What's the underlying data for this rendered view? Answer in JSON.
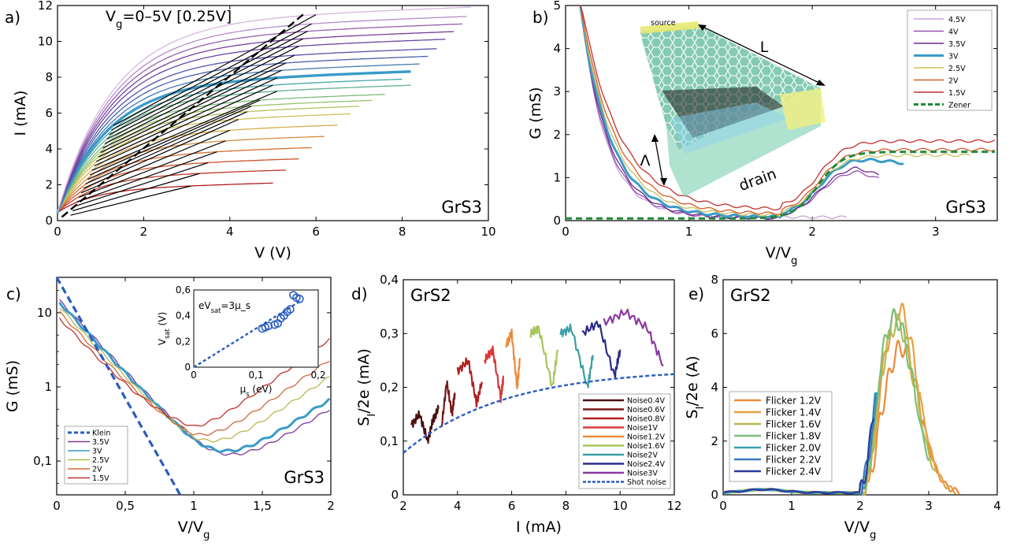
{
  "panels": {
    "a": {
      "label": "a)",
      "annotation": "V_g=0–5V [0.25V]",
      "tag": "GrS3",
      "xlabel": "V (V)",
      "ylabel": "I (mA)",
      "xticks": [
        "0",
        "2",
        "4",
        "6",
        "8",
        "10"
      ],
      "yticks": [
        "0",
        "2",
        "4",
        "6",
        "8",
        "10",
        "12"
      ]
    },
    "b": {
      "label": "b)",
      "tag": "GrS3",
      "xlabel": "V/V_g",
      "ylabel": "G (mS)",
      "xticks": [
        "0",
        "1",
        "2",
        "3"
      ],
      "yticks": [
        "0",
        "1",
        "2",
        "3",
        "4",
        "5"
      ],
      "inset": {
        "source": "source",
        "L": "L",
        "lambda": "Λ",
        "drain": "drain"
      },
      "legend": [
        "4.5V",
        "4V",
        "3.5V",
        "3V",
        "2.5V",
        "2V",
        "1.5V",
        "Zener"
      ]
    },
    "c": {
      "label": "c)",
      "tag": "GrS3",
      "xlabel": "V/V_g",
      "ylabel": "G (mS)",
      "xticks": [
        "0",
        "0,5",
        "1",
        "1,5",
        "2"
      ],
      "yticks": [
        "0,1",
        "1",
        "10"
      ],
      "legend": [
        "Klein",
        "3.5V",
        "3V",
        "2.5V",
        "2V",
        "1.5V"
      ],
      "inset": {
        "annotation": "eV_sat=3μ_s",
        "xlabel": "μ_s (eV)",
        "ylabel": "V_sat (V)",
        "xticks": [
          "0",
          "0,1",
          "0,2"
        ],
        "yticks": [
          "0",
          "0,2",
          "0,4",
          "0,6"
        ]
      }
    },
    "d": {
      "label": "d)",
      "tag": "GrS2",
      "xlabel": "I (mA)",
      "ylabel": "S_I/2e (mA)",
      "xticks": [
        "2",
        "4",
        "6",
        "8",
        "10",
        "12"
      ],
      "yticks": [
        "0",
        "0,1",
        "0,2",
        "0,3",
        "0,4"
      ],
      "legend": [
        "Noise0.4V",
        "Noise0.6V",
        "Noise0.8V",
        "Noise1V",
        "Noise1.2V",
        "Noise1.6V",
        "Noise2V",
        "Noise2.4V",
        "Noise3V",
        "Shot noise"
      ]
    },
    "e": {
      "label": "e)",
      "tag": "GrS2",
      "xlabel": "V/V_g",
      "ylabel": "S_I/2e (A)",
      "xticks": [
        "0",
        "1",
        "2",
        "3",
        "4"
      ],
      "yticks": [
        "0",
        "2",
        "4",
        "6",
        "8"
      ],
      "legend": [
        "Flicker 1.2V",
        "Flicker 1.4V",
        "Flicker 1.6V",
        "Flicker 1.8V",
        "Flicker 2.0V",
        "Flicker 2.2V",
        "Flicker 2.4V"
      ]
    }
  },
  "chart_data": [
    {
      "id": "a",
      "type": "line",
      "title": "",
      "xlabel": "V (V)",
      "ylabel": "I (mA)",
      "xlim": [
        0,
        10
      ],
      "ylim": [
        0,
        12
      ],
      "series_rule": "21 curves, V_g = 0 to 5 V in 0.25 V steps; thick teal curve = 3V",
      "saturation_currents": [
        1.3,
        2.0,
        2.6,
        3.2,
        3.8,
        4.4,
        5.0,
        5.4,
        5.7,
        6.0,
        6.45,
        6.8,
        7.2,
        7.6,
        8.0,
        8.4,
        8.9,
        9.3,
        9.7,
        10.1,
        10.6
      ],
      "curve_end_x": [
        5.0,
        5.3,
        5.6,
        5.9,
        6.2,
        6.5,
        6.8,
        7.0,
        7.3,
        7.6,
        8.2,
        8.0,
        8.2,
        8.4,
        8.6,
        8.8,
        9.0,
        9.2,
        9.4,
        9.5,
        9.6
      ],
      "dashed_line": {
        "x": [
          0.1,
          5.7
        ],
        "y": [
          0.2,
          11.5
        ]
      }
    },
    {
      "id": "b",
      "type": "line",
      "title": "",
      "xlabel": "V/V_g",
      "ylabel": "G (mS)",
      "xlim": [
        0,
        3.5
      ],
      "ylim": [
        0,
        5
      ],
      "series": [
        {
          "name": "4.5V",
          "color": "#c7a3d8"
        },
        {
          "name": "4V",
          "color": "#9a50b0"
        },
        {
          "name": "3.5V",
          "color": "#6a2a8a"
        },
        {
          "name": "3V",
          "color": "#3a9bc7"
        },
        {
          "name": "2.5V",
          "color": "#c6c25a"
        },
        {
          "name": "2V",
          "color": "#d45a2a"
        },
        {
          "name": "1.5V",
          "color": "#c23030"
        },
        {
          "name": "Zener",
          "color": "#1f8a3a",
          "dash": true
        }
      ]
    },
    {
      "id": "c",
      "type": "line",
      "title": "",
      "xlabel": "V/V_g",
      "ylabel": "G (mS)",
      "xlim": [
        0,
        2
      ],
      "ylim": [
        0.035,
        30
      ],
      "yscale": "log",
      "series": [
        {
          "name": "Klein",
          "color": "#2a5cc0",
          "dash": true
        },
        {
          "name": "3.5V",
          "color": "#7a3a9a"
        },
        {
          "name": "3V",
          "color": "#3a9bc7"
        },
        {
          "name": "2.5V",
          "color": "#b8b850"
        },
        {
          "name": "2V",
          "color": "#d06a3a"
        },
        {
          "name": "1.5V",
          "color": "#c23030"
        }
      ],
      "inset": {
        "xlabel": "μ_s (eV)",
        "ylabel": "V_sat (V)",
        "xlim": [
          0,
          0.2
        ],
        "ylim": [
          0,
          0.6
        ],
        "points": [
          [
            0.11,
            0.3
          ],
          [
            0.115,
            0.31
          ],
          [
            0.12,
            0.32
          ],
          [
            0.13,
            0.33
          ],
          [
            0.135,
            0.34
          ],
          [
            0.14,
            0.38
          ],
          [
            0.145,
            0.4
          ],
          [
            0.15,
            0.43
          ],
          [
            0.155,
            0.45
          ],
          [
            0.16,
            0.56
          ],
          [
            0.165,
            0.54
          ],
          [
            0.17,
            0.53
          ]
        ],
        "fit": {
          "x": [
            0,
            0.17
          ],
          "y": [
            0,
            0.51
          ]
        }
      }
    },
    {
      "id": "d",
      "type": "line",
      "title": "",
      "xlabel": "I (mA)",
      "ylabel": "S_I/2e (mA)",
      "xlim": [
        2,
        12
      ],
      "ylim": [
        0,
        0.4
      ],
      "series": [
        {
          "name": "Noise0.4V",
          "color": "#4a1010",
          "x": [
            2.3,
            2.6,
            2.9,
            3.1,
            3.3
          ],
          "y": [
            0.13,
            0.15,
            0.1,
            0.14,
            0.16
          ]
        },
        {
          "name": "Noise0.6V",
          "color": "#7a1818",
          "x": [
            3.4,
            3.6,
            3.8,
            3.9
          ],
          "y": [
            0.12,
            0.21,
            0.15,
            0.19
          ]
        },
        {
          "name": "Noise0.8V",
          "color": "#b02020",
          "x": [
            4.0,
            4.4,
            4.7,
            4.9
          ],
          "y": [
            0.23,
            0.25,
            0.17,
            0.21
          ]
        },
        {
          "name": "Noise1V",
          "color": "#d83a3a",
          "x": [
            5.0,
            5.3,
            5.6,
            5.7
          ],
          "y": [
            0.25,
            0.27,
            0.18,
            0.22
          ]
        },
        {
          "name": "Noise1.2V",
          "color": "#ec8a3a",
          "x": [
            5.8,
            6.0,
            6.2,
            6.3
          ],
          "y": [
            0.28,
            0.3,
            0.2,
            0.25
          ]
        },
        {
          "name": "Noise1.6V",
          "color": "#a6c65a",
          "x": [
            6.7,
            7.0,
            7.5,
            7.7
          ],
          "y": [
            0.3,
            0.31,
            0.2,
            0.27
          ]
        },
        {
          "name": "Noise2V",
          "color": "#3aa0a6",
          "x": [
            7.8,
            8.2,
            8.8,
            9.0
          ],
          "y": [
            0.3,
            0.31,
            0.2,
            0.26
          ]
        },
        {
          "name": "Noise2.4V",
          "color": "#2a2a8a",
          "x": [
            8.6,
            9.2,
            9.8,
            10.0
          ],
          "y": [
            0.3,
            0.32,
            0.22,
            0.27
          ]
        },
        {
          "name": "Noise3V",
          "color": "#8a3aa0",
          "x": [
            9.4,
            10.2,
            11.0,
            11.6
          ],
          "y": [
            0.32,
            0.34,
            0.31,
            0.24
          ]
        },
        {
          "name": "Shot noise",
          "color": "#2a5cc0",
          "dash": true,
          "x": [
            2,
            4,
            6,
            8,
            10,
            12
          ],
          "y": [
            0.078,
            0.132,
            0.175,
            0.203,
            0.22,
            0.23
          ]
        }
      ]
    },
    {
      "id": "e",
      "type": "line",
      "title": "",
      "xlabel": "V/V_g",
      "ylabel": "S_I/2e (A)",
      "xlim": [
        0,
        4
      ],
      "ylim": [
        0,
        8
      ],
      "series": [
        {
          "name": "Flicker 1.2V",
          "color": "#ec8a3a"
        },
        {
          "name": "Flicker 1.4V",
          "color": "#e6a040"
        },
        {
          "name": "Flicker 1.6V",
          "color": "#b8b850"
        },
        {
          "name": "Flicker 1.8V",
          "color": "#7ac07a"
        },
        {
          "name": "Flicker 2.0V",
          "color": "#3aa0b0"
        },
        {
          "name": "Flicker 2.2V",
          "color": "#3a7ac0"
        },
        {
          "name": "Flicker 2.4V",
          "color": "#2a3a9a"
        }
      ],
      "peaks": [
        5.4,
        6.8,
        6.3,
        6.5,
        6.2,
        5.5,
        5.0
      ]
    }
  ]
}
